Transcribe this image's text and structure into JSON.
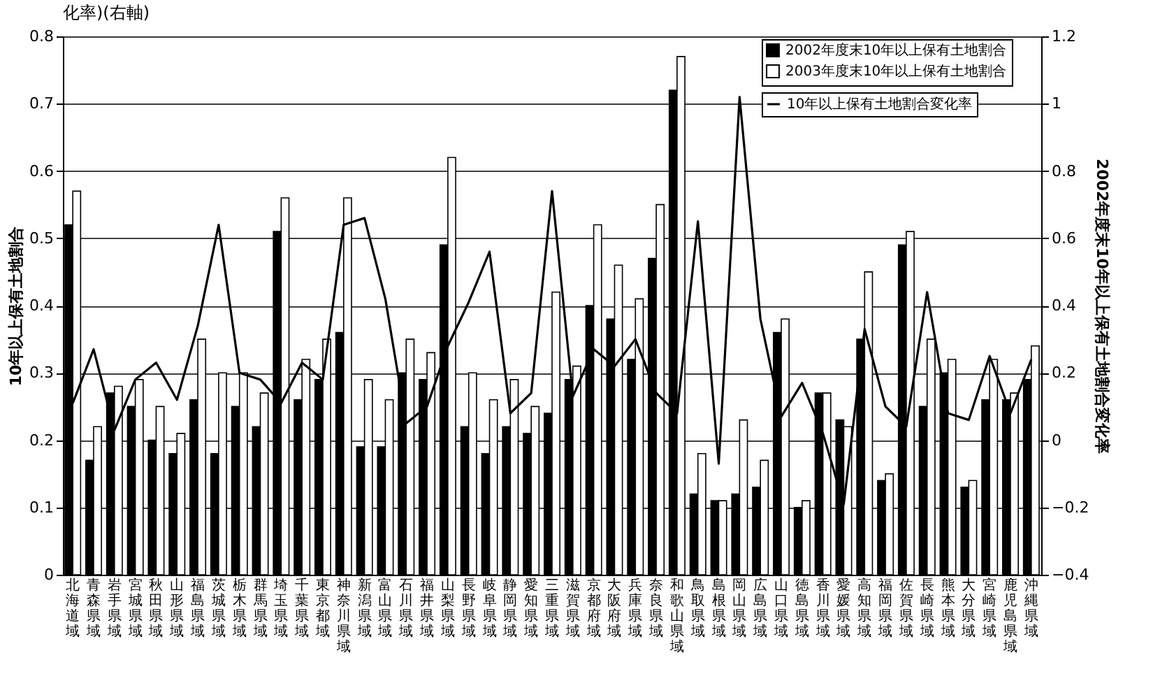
{
  "chart_data": {
    "type": "bar",
    "title": "化率)(右軸)",
    "ylabel": "10年以上保有土地割合",
    "y2label": "2002年度末10年以上保有土地割合変化率",
    "categories": [
      "北海道域",
      "青森県域",
      "岩手県域",
      "宮城県域",
      "秋田県域",
      "山形県域",
      "福島県域",
      "茨城県域",
      "栃木県域",
      "群馬県域",
      "埼玉県域",
      "千葉県域",
      "東京都域",
      "神奈川県域",
      "新潟県域",
      "富山県域",
      "石川県域",
      "福井県域",
      "山梨県域",
      "長野県域",
      "岐阜県域",
      "静岡県域",
      "愛知県域",
      "三重県域",
      "滋賀県域",
      "京都府域",
      "大阪府域",
      "兵庫県域",
      "奈良県域",
      "和歌山県域",
      "鳥取県域",
      "島根県域",
      "岡山県域",
      "広島県域",
      "山口県域",
      "徳島県域",
      "香川県域",
      "愛媛県域",
      "高知県域",
      "福岡県域",
      "佐賀県域",
      "長崎県域",
      "熊本県域",
      "大分県域",
      "宮崎県域",
      "鹿児島県域",
      "沖縄県域"
    ],
    "series": [
      {
        "name": "2002年度末10年以上保有土地割合",
        "color": "#000000",
        "values": [
          0.52,
          0.17,
          0.27,
          0.25,
          0.2,
          0.18,
          0.26,
          0.18,
          0.25,
          0.22,
          0.51,
          0.26,
          0.29,
          0.36,
          0.19,
          0.19,
          0.3,
          0.29,
          0.49,
          0.22,
          0.18,
          0.22,
          0.21,
          0.24,
          0.29,
          0.4,
          0.38,
          0.32,
          0.47,
          0.72,
          0.12,
          0.11,
          0.12,
          0.13,
          0.36,
          0.1,
          0.27,
          0.23,
          0.35,
          0.14,
          0.49,
          0.25,
          0.3,
          0.13,
          0.26,
          0.26,
          0.29
        ]
      },
      {
        "name": "2003年度末10年以上保有土地割合",
        "color": "#ffffff",
        "values": [
          0.57,
          0.22,
          0.28,
          0.29,
          0.25,
          0.21,
          0.35,
          0.3,
          0.3,
          0.27,
          0.56,
          0.32,
          0.35,
          0.56,
          0.29,
          0.26,
          0.35,
          0.33,
          0.62,
          0.3,
          0.26,
          0.29,
          0.25,
          0.42,
          0.31,
          0.52,
          0.46,
          0.41,
          0.55,
          0.77,
          0.18,
          0.11,
          0.23,
          0.17,
          0.38,
          0.11,
          0.27,
          0.22,
          0.45,
          0.15,
          0.51,
          0.35,
          0.32,
          0.14,
          0.32,
          0.27,
          0.34
        ]
      },
      {
        "name": "10年以上保有土地割合変化率",
        "color": "#000000",
        "type": "line",
        "axis": "y2",
        "values": [
          0.11,
          0.27,
          0.03,
          0.18,
          0.23,
          0.12,
          0.34,
          0.64,
          0.2,
          0.18,
          0.11,
          0.23,
          0.18,
          0.64,
          0.66,
          0.42,
          0.05,
          0.1,
          0.28,
          0.41,
          0.56,
          0.08,
          0.14,
          0.74,
          0.13,
          0.27,
          0.22,
          0.3,
          0.14,
          0.08,
          0.65,
          -0.07,
          1.02,
          0.36,
          0.07,
          0.17,
          0.02,
          -0.19,
          0.33,
          0.1,
          0.04,
          0.44,
          0.08,
          0.06,
          0.25,
          0.08,
          0.24
        ]
      }
    ],
    "ylim": [
      0,
      0.8
    ],
    "yticks": [
      0,
      0.1,
      0.2,
      0.3,
      0.4,
      0.5,
      0.6,
      0.7,
      0.8
    ],
    "y2lim": [
      -0.4,
      1.2
    ],
    "y2ticks": [
      -0.4,
      -0.2,
      0,
      0.2,
      0.4,
      0.6,
      0.8,
      1,
      1.2
    ],
    "grid": "y",
    "legend": "top right"
  }
}
